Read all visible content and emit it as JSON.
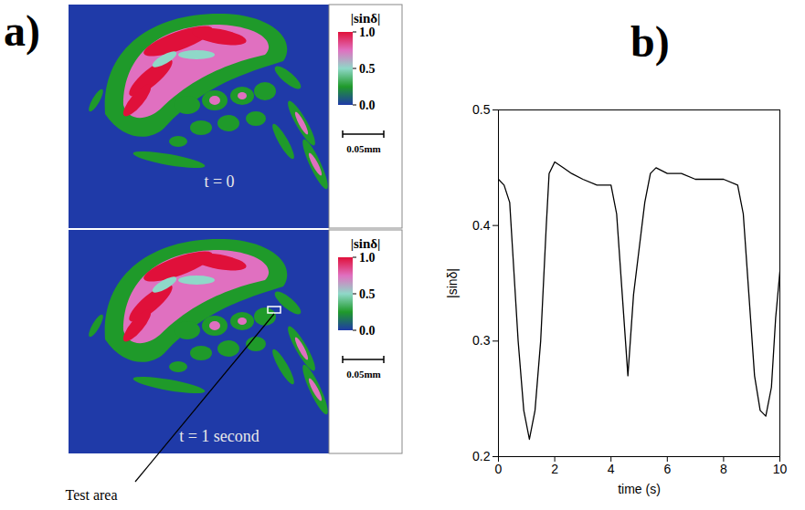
{
  "panel_a": {
    "label": "a)",
    "images": [
      {
        "time_label": "t = 0"
      },
      {
        "time_label": "t = 1 second",
        "annotation": "Test area"
      }
    ],
    "colorbar": {
      "label": "|sinδ|",
      "range": [
        0,
        1
      ],
      "ticks": [
        {
          "value": 0,
          "label": "0.0"
        },
        {
          "value": 0.5,
          "label": "0.5"
        },
        {
          "value": 1,
          "label": "1.0"
        }
      ],
      "colors": [
        "#1f3aa8",
        "#1f9a2a",
        "#8fd8c8",
        "#e070c0",
        "#e0103a"
      ]
    },
    "scale_bar": "0.05mm"
  },
  "chart_data": {
    "type": "line",
    "panel_label": "b)",
    "x": [
      0,
      0.2,
      0.4,
      0.5,
      0.7,
      0.9,
      1.1,
      1.3,
      1.5,
      1.7,
      1.8,
      2.0,
      2.3,
      2.6,
      3.0,
      3.5,
      4.0,
      4.2,
      4.4,
      4.6,
      4.8,
      5.0,
      5.2,
      5.4,
      5.6,
      6.0,
      6.5,
      7.0,
      7.5,
      8.0,
      8.5,
      8.7,
      8.9,
      9.1,
      9.3,
      9.5,
      9.7,
      9.85,
      10
    ],
    "values": [
      0.44,
      0.435,
      0.42,
      0.38,
      0.3,
      0.24,
      0.215,
      0.24,
      0.3,
      0.4,
      0.445,
      0.455,
      0.45,
      0.445,
      0.44,
      0.435,
      0.435,
      0.41,
      0.34,
      0.27,
      0.34,
      0.38,
      0.42,
      0.445,
      0.45,
      0.445,
      0.445,
      0.44,
      0.44,
      0.44,
      0.435,
      0.41,
      0.34,
      0.27,
      0.24,
      0.235,
      0.26,
      0.32,
      0.36
    ],
    "xlabel": "time (s)",
    "ylabel": "|sinδ|",
    "xlim": [
      0,
      10
    ],
    "ylim": [
      0.2,
      0.5
    ],
    "xticks": [
      0,
      2,
      4,
      6,
      8,
      10
    ],
    "yticks": [
      0.2,
      0.3,
      0.4,
      0.5
    ],
    "color": "#000000"
  }
}
